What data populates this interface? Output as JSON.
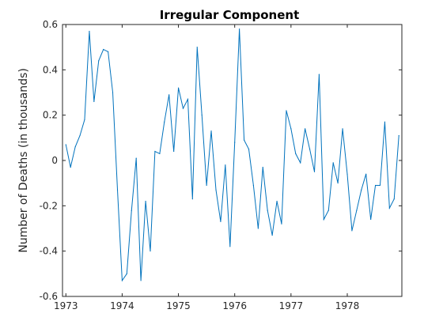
{
  "chart_data": {
    "type": "line",
    "title": "Irregular Component",
    "xlabel": "",
    "ylabel": "Number of Deaths (in thousands)",
    "xlim": [
      1972.94,
      1978.97
    ],
    "ylim": [
      -0.6,
      0.6
    ],
    "xticks": [
      1973,
      1974,
      1975,
      1976,
      1977,
      1978
    ],
    "xtick_labels": [
      "1973",
      "1974",
      "1975",
      "1976",
      "1977",
      "1978"
    ],
    "yticks": [
      -0.6,
      -0.4,
      -0.2,
      0,
      0.2,
      0.4,
      0.6
    ],
    "ytick_labels": [
      "-0.6",
      "-0.4",
      "-0.2",
      "0",
      "0.2",
      "0.4",
      "0.6"
    ],
    "grid": false,
    "series": [
      {
        "color": "#0072bd",
        "x": [
          1973.0,
          1973.083,
          1973.167,
          1973.25,
          1973.333,
          1973.417,
          1973.5,
          1973.583,
          1973.667,
          1973.75,
          1973.833,
          1973.917,
          1974.0,
          1974.083,
          1974.167,
          1974.25,
          1974.333,
          1974.417,
          1974.5,
          1974.583,
          1974.667,
          1974.75,
          1974.833,
          1974.917,
          1975.0,
          1975.083,
          1975.167,
          1975.25,
          1975.333,
          1975.417,
          1975.5,
          1975.583,
          1975.667,
          1975.75,
          1975.833,
          1975.917,
          1976.0,
          1976.083,
          1976.167,
          1976.25,
          1976.333,
          1976.417,
          1976.5,
          1976.583,
          1976.667,
          1976.75,
          1976.833,
          1976.917,
          1977.0,
          1977.083,
          1977.167,
          1977.25,
          1977.333,
          1977.417,
          1977.5,
          1977.583,
          1977.667,
          1977.75,
          1977.833,
          1977.917,
          1978.0,
          1978.083,
          1978.167,
          1978.25,
          1978.333,
          1978.417,
          1978.5,
          1978.583,
          1978.667,
          1978.75,
          1978.833,
          1978.917
        ],
        "values": [
          0.07,
          -0.03,
          0.06,
          0.11,
          0.18,
          0.57,
          0.26,
          0.44,
          0.49,
          0.48,
          0.3,
          -0.13,
          -0.53,
          -0.5,
          -0.22,
          0.01,
          -0.53,
          -0.18,
          -0.4,
          0.04,
          0.03,
          0.17,
          0.29,
          0.04,
          0.32,
          0.23,
          0.27,
          -0.17,
          0.5,
          0.2,
          -0.11,
          0.13,
          -0.13,
          -0.27,
          -0.02,
          -0.38,
          0.08,
          0.58,
          0.09,
          0.05,
          -0.11,
          -0.3,
          -0.03,
          -0.22,
          -0.33,
          -0.18,
          -0.28,
          0.22,
          0.14,
          0.03,
          -0.01,
          0.14,
          0.05,
          -0.05,
          0.38,
          -0.26,
          -0.22,
          -0.01,
          -0.1,
          0.14,
          -0.06,
          -0.31,
          -0.22,
          -0.13,
          -0.06,
          -0.26,
          -0.11,
          -0.11,
          0.17,
          -0.21,
          -0.17,
          0.11
        ]
      }
    ]
  }
}
